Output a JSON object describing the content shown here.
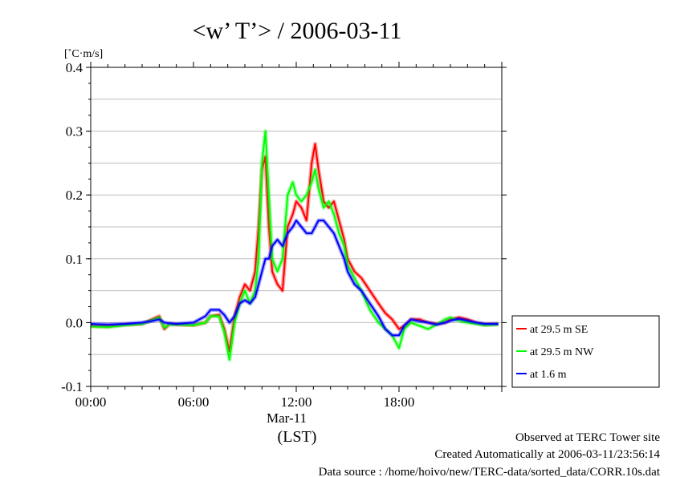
{
  "title": "<w’ T’> / 2006-03-11",
  "unit_label": "[˚C·m/s]",
  "footer": {
    "observed": "Observed at TERC Tower site",
    "created": "Created Automatically at 2006-03-11/23:56:14",
    "source": "Data source : /home/hoivo/new/TERC-data/sorted_data/CORR.10s.dat"
  },
  "chart_data": {
    "type": "line",
    "title": "<w’ T’> / 2006-03-11",
    "ylabel": "[˚C·m/s]",
    "xlabel": "(LST)",
    "date_label": "Mar-11",
    "x_unit": "hour (LST)",
    "xlim": [
      0,
      24
    ],
    "ylim": [
      -0.1,
      0.4
    ],
    "xticks": [
      {
        "x": 0,
        "label": "00:00"
      },
      {
        "x": 6,
        "label": "06:00"
      },
      {
        "x": 12,
        "label": "12:00"
      },
      {
        "x": 18,
        "label": "18:00"
      }
    ],
    "yticks": [
      {
        "y": -0.1,
        "label": "-0.1"
      },
      {
        "y": 0.0,
        "label": "0.0"
      },
      {
        "y": 0.1,
        "label": "0.1"
      },
      {
        "y": 0.2,
        "label": "0.2"
      },
      {
        "y": 0.3,
        "label": "0.3"
      },
      {
        "y": 0.4,
        "label": "0.4"
      }
    ],
    "grid": true,
    "legend_position": "right-outside-bottom",
    "series": [
      {
        "name": "at 29.5 m SE",
        "color": "#ff0000",
        "points": [
          [
            0,
            -0.005
          ],
          [
            1,
            -0.006
          ],
          [
            2,
            -0.003
          ],
          [
            3,
            -0.002
          ],
          [
            3.5,
            0.004
          ],
          [
            4,
            0.01
          ],
          [
            4.3,
            -0.01
          ],
          [
            4.6,
            -0.002
          ],
          [
            5,
            -0.003
          ],
          [
            6,
            -0.004
          ],
          [
            6.7,
            0.0
          ],
          [
            7,
            0.01
          ],
          [
            7.5,
            0.012
          ],
          [
            7.8,
            -0.01
          ],
          [
            8.1,
            -0.045
          ],
          [
            8.4,
            0.01
          ],
          [
            8.7,
            0.04
          ],
          [
            9,
            0.06
          ],
          [
            9.3,
            0.05
          ],
          [
            9.6,
            0.08
          ],
          [
            9.8,
            0.15
          ],
          [
            10,
            0.24
          ],
          [
            10.2,
            0.26
          ],
          [
            10.4,
            0.15
          ],
          [
            10.6,
            0.08
          ],
          [
            10.9,
            0.06
          ],
          [
            11.2,
            0.05
          ],
          [
            11.5,
            0.15
          ],
          [
            11.8,
            0.17
          ],
          [
            12,
            0.19
          ],
          [
            12.3,
            0.18
          ],
          [
            12.6,
            0.16
          ],
          [
            12.9,
            0.25
          ],
          [
            13.1,
            0.28
          ],
          [
            13.3,
            0.24
          ],
          [
            13.6,
            0.19
          ],
          [
            13.9,
            0.18
          ],
          [
            14.2,
            0.19
          ],
          [
            14.5,
            0.16
          ],
          [
            14.8,
            0.13
          ],
          [
            15,
            0.1
          ],
          [
            15.4,
            0.08
          ],
          [
            15.8,
            0.07
          ],
          [
            16.3,
            0.05
          ],
          [
            16.8,
            0.03
          ],
          [
            17.2,
            0.015
          ],
          [
            17.6,
            0.005
          ],
          [
            18,
            -0.01
          ],
          [
            18.3,
            -0.005
          ],
          [
            18.7,
            0.005
          ],
          [
            19.2,
            0.005
          ],
          [
            19.7,
            0.0
          ],
          [
            20.2,
            -0.002
          ],
          [
            20.7,
            0.0
          ],
          [
            21,
            0.005
          ],
          [
            21.5,
            0.008
          ],
          [
            22,
            0.005
          ],
          [
            22.5,
            0.0
          ],
          [
            23,
            -0.003
          ],
          [
            23.8,
            -0.002
          ]
        ]
      },
      {
        "name": "at 29.5 m NW",
        "color": "#00ff00",
        "points": [
          [
            0,
            -0.006
          ],
          [
            1,
            -0.007
          ],
          [
            2,
            -0.004
          ],
          [
            3,
            -0.002
          ],
          [
            3.5,
            0.003
          ],
          [
            4,
            0.008
          ],
          [
            4.3,
            -0.008
          ],
          [
            4.6,
            -0.003
          ],
          [
            5,
            -0.003
          ],
          [
            6,
            -0.004
          ],
          [
            6.7,
            0.0
          ],
          [
            7,
            0.01
          ],
          [
            7.5,
            0.01
          ],
          [
            7.8,
            -0.015
          ],
          [
            8.1,
            -0.058
          ],
          [
            8.4,
            0.0
          ],
          [
            8.7,
            0.03
          ],
          [
            9,
            0.05
          ],
          [
            9.3,
            0.03
          ],
          [
            9.6,
            0.05
          ],
          [
            9.8,
            0.1
          ],
          [
            10,
            0.25
          ],
          [
            10.2,
            0.3
          ],
          [
            10.4,
            0.2
          ],
          [
            10.6,
            0.1
          ],
          [
            10.9,
            0.08
          ],
          [
            11.2,
            0.1
          ],
          [
            11.5,
            0.2
          ],
          [
            11.8,
            0.22
          ],
          [
            12,
            0.2
          ],
          [
            12.3,
            0.19
          ],
          [
            12.6,
            0.2
          ],
          [
            12.9,
            0.22
          ],
          [
            13.1,
            0.24
          ],
          [
            13.3,
            0.21
          ],
          [
            13.6,
            0.18
          ],
          [
            13.9,
            0.19
          ],
          [
            14.2,
            0.17
          ],
          [
            14.5,
            0.14
          ],
          [
            14.8,
            0.12
          ],
          [
            15,
            0.09
          ],
          [
            15.4,
            0.07
          ],
          [
            15.8,
            0.05
          ],
          [
            16.3,
            0.02
          ],
          [
            16.8,
            0.0
          ],
          [
            17.2,
            -0.01
          ],
          [
            17.6,
            -0.02
          ],
          [
            18,
            -0.04
          ],
          [
            18.3,
            -0.01
          ],
          [
            18.7,
            0.0
          ],
          [
            19.2,
            -0.005
          ],
          [
            19.7,
            -0.01
          ],
          [
            20.2,
            -0.003
          ],
          [
            20.7,
            0.005
          ],
          [
            21,
            0.008
          ],
          [
            21.5,
            0.003
          ],
          [
            22,
            0.0
          ],
          [
            22.5,
            -0.002
          ],
          [
            23,
            -0.004
          ],
          [
            23.8,
            -0.003
          ]
        ]
      },
      {
        "name": "at 1.6 m",
        "color": "#0000ff",
        "points": [
          [
            0,
            -0.002
          ],
          [
            1,
            -0.003
          ],
          [
            2,
            -0.002
          ],
          [
            3,
            0.0
          ],
          [
            3.5,
            0.002
          ],
          [
            4,
            0.005
          ],
          [
            4.3,
            0.0
          ],
          [
            4.6,
            -0.001
          ],
          [
            5,
            -0.002
          ],
          [
            6,
            0.0
          ],
          [
            6.7,
            0.01
          ],
          [
            7,
            0.02
          ],
          [
            7.5,
            0.02
          ],
          [
            7.8,
            0.012
          ],
          [
            8.1,
            0.0
          ],
          [
            8.4,
            0.01
          ],
          [
            8.7,
            0.03
          ],
          [
            9,
            0.035
          ],
          [
            9.3,
            0.03
          ],
          [
            9.6,
            0.04
          ],
          [
            9.8,
            0.06
          ],
          [
            10,
            0.08
          ],
          [
            10.2,
            0.1
          ],
          [
            10.4,
            0.1
          ],
          [
            10.6,
            0.12
          ],
          [
            10.9,
            0.13
          ],
          [
            11.2,
            0.12
          ],
          [
            11.5,
            0.14
          ],
          [
            11.8,
            0.15
          ],
          [
            12,
            0.16
          ],
          [
            12.3,
            0.15
          ],
          [
            12.6,
            0.14
          ],
          [
            12.9,
            0.14
          ],
          [
            13.1,
            0.15
          ],
          [
            13.3,
            0.16
          ],
          [
            13.6,
            0.16
          ],
          [
            13.9,
            0.15
          ],
          [
            14.2,
            0.14
          ],
          [
            14.5,
            0.12
          ],
          [
            14.8,
            0.1
          ],
          [
            15,
            0.08
          ],
          [
            15.4,
            0.06
          ],
          [
            15.8,
            0.05
          ],
          [
            16.3,
            0.03
          ],
          [
            16.8,
            0.01
          ],
          [
            17.2,
            -0.01
          ],
          [
            17.6,
            -0.02
          ],
          [
            18,
            -0.02
          ],
          [
            18.3,
            -0.005
          ],
          [
            18.7,
            0.005
          ],
          [
            19.2,
            0.002
          ],
          [
            19.7,
            0.0
          ],
          [
            20.2,
            -0.003
          ],
          [
            20.7,
            0.0
          ],
          [
            21,
            0.003
          ],
          [
            21.5,
            0.006
          ],
          [
            22,
            0.003
          ],
          [
            22.5,
            0.0
          ],
          [
            23,
            -0.002
          ],
          [
            23.8,
            -0.002
          ]
        ]
      }
    ]
  }
}
